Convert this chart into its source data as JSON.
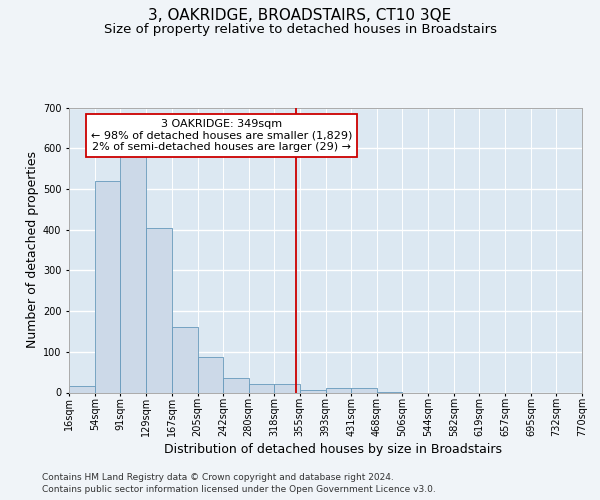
{
  "title": "3, OAKRIDGE, BROADSTAIRS, CT10 3QE",
  "subtitle": "Size of property relative to detached houses in Broadstairs",
  "xlabel": "Distribution of detached houses by size in Broadstairs",
  "ylabel": "Number of detached properties",
  "bar_color": "#ccd9e8",
  "bar_edge_color": "#6699bb",
  "plot_bg_color": "#dce8f2",
  "fig_bg_color": "#f0f4f8",
  "grid_color": "#ffffff",
  "vline_x": 349,
  "vline_color": "#cc0000",
  "annotation_text": "3 OAKRIDGE: 349sqm\n← 98% of detached houses are smaller (1,829)\n2% of semi-detached houses are larger (29) →",
  "annotation_box_edgecolor": "#cc0000",
  "bin_edges": [
    16,
    54,
    91,
    129,
    167,
    205,
    242,
    280,
    318,
    355,
    393,
    431,
    468,
    506,
    544,
    582,
    619,
    657,
    695,
    732,
    770
  ],
  "bar_heights": [
    15,
    520,
    580,
    405,
    160,
    88,
    35,
    22,
    22,
    7,
    10,
    10,
    2,
    0,
    0,
    0,
    0,
    0,
    0,
    0
  ],
  "ylim": [
    0,
    700
  ],
  "yticks": [
    0,
    100,
    200,
    300,
    400,
    500,
    600,
    700
  ],
  "tick_labels": [
    "16sqm",
    "54sqm",
    "91sqm",
    "129sqm",
    "167sqm",
    "205sqm",
    "242sqm",
    "280sqm",
    "318sqm",
    "355sqm",
    "393sqm",
    "431sqm",
    "468sqm",
    "506sqm",
    "544sqm",
    "582sqm",
    "619sqm",
    "657sqm",
    "695sqm",
    "732sqm",
    "770sqm"
  ],
  "footer_line1": "Contains HM Land Registry data © Crown copyright and database right 2024.",
  "footer_line2": "Contains public sector information licensed under the Open Government Licence v3.0.",
  "title_fontsize": 11,
  "subtitle_fontsize": 9.5,
  "axis_label_fontsize": 9,
  "tick_fontsize": 7,
  "annotation_fontsize": 8,
  "footer_fontsize": 6.5
}
